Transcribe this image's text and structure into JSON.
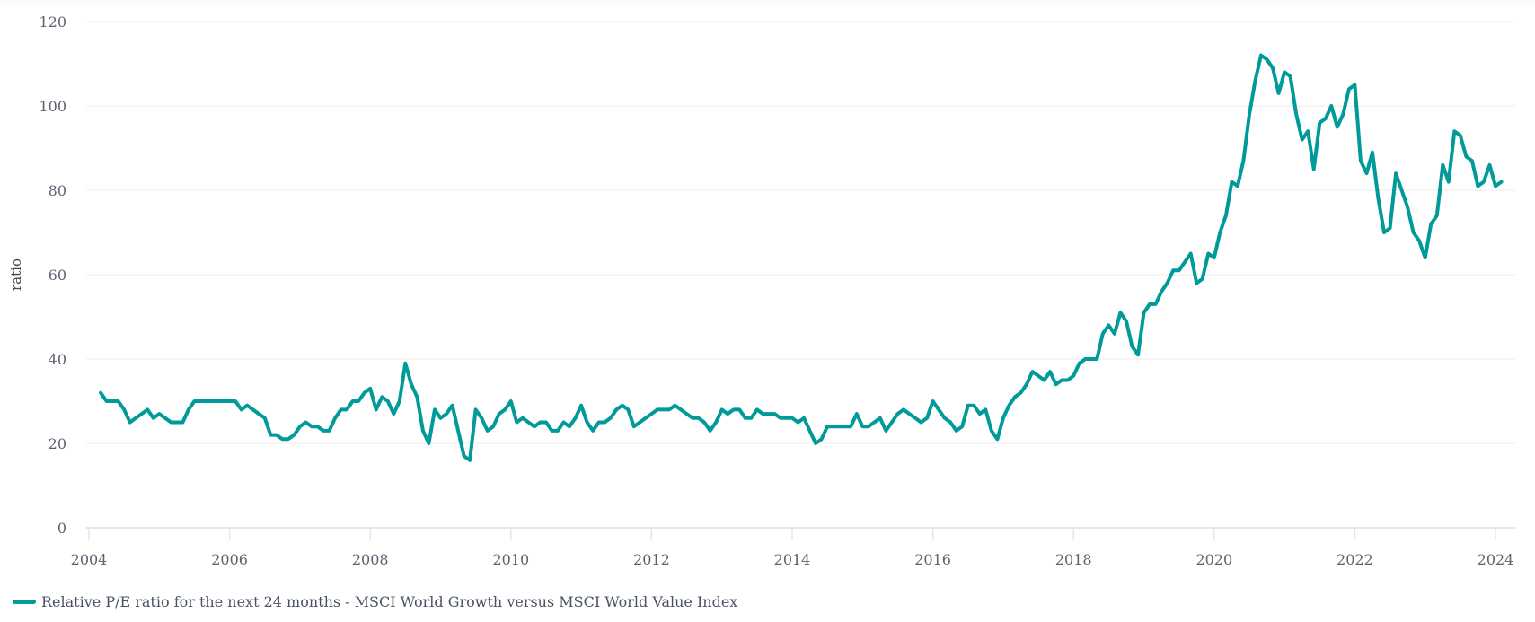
{
  "chart_data": {
    "type": "line",
    "title": "",
    "xlabel": "",
    "ylabel": "ratio",
    "ylim": [
      0,
      120
    ],
    "xlim": [
      "2004-01",
      "2024-03"
    ],
    "y_ticks": [
      "0",
      "20",
      "40",
      "60",
      "80",
      "100",
      "120"
    ],
    "x_ticks": [
      "2004",
      "2006",
      "2008",
      "2010",
      "2012",
      "2014",
      "2016",
      "2018",
      "2020",
      "2022",
      "2024"
    ],
    "grid": "horizontal",
    "legend_position": "bottom-left",
    "series": [
      {
        "name": "Relative P/E ratio for the next 24 months - MSCI World Growth versus MSCI World Value Index",
        "color": "#009a9b",
        "points": [
          [
            "2004-03",
            32
          ],
          [
            "2004-04",
            30
          ],
          [
            "2004-05",
            30
          ],
          [
            "2004-06",
            30
          ],
          [
            "2004-07",
            28
          ],
          [
            "2004-08",
            25
          ],
          [
            "2004-09",
            26
          ],
          [
            "2004-10",
            27
          ],
          [
            "2004-11",
            28
          ],
          [
            "2004-12",
            26
          ],
          [
            "2005-01",
            27
          ],
          [
            "2005-02",
            26
          ],
          [
            "2005-03",
            25
          ],
          [
            "2005-04",
            25
          ],
          [
            "2005-05",
            25
          ],
          [
            "2005-06",
            28
          ],
          [
            "2005-07",
            30
          ],
          [
            "2005-08",
            30
          ],
          [
            "2005-09",
            30
          ],
          [
            "2005-10",
            30
          ],
          [
            "2005-11",
            30
          ],
          [
            "2005-12",
            30
          ],
          [
            "2006-01",
            30
          ],
          [
            "2006-02",
            30
          ],
          [
            "2006-03",
            28
          ],
          [
            "2006-04",
            29
          ],
          [
            "2006-05",
            28
          ],
          [
            "2006-06",
            27
          ],
          [
            "2006-07",
            26
          ],
          [
            "2006-08",
            22
          ],
          [
            "2006-09",
            22
          ],
          [
            "2006-10",
            21
          ],
          [
            "2006-11",
            21
          ],
          [
            "2006-12",
            22
          ],
          [
            "2007-01",
            24
          ],
          [
            "2007-02",
            25
          ],
          [
            "2007-03",
            24
          ],
          [
            "2007-04",
            24
          ],
          [
            "2007-05",
            23
          ],
          [
            "2007-06",
            23
          ],
          [
            "2007-07",
            26
          ],
          [
            "2007-08",
            28
          ],
          [
            "2007-09",
            28
          ],
          [
            "2007-10",
            30
          ],
          [
            "2007-11",
            30
          ],
          [
            "2007-12",
            32
          ],
          [
            "2008-01",
            33
          ],
          [
            "2008-02",
            28
          ],
          [
            "2008-03",
            31
          ],
          [
            "2008-04",
            30
          ],
          [
            "2008-05",
            27
          ],
          [
            "2008-06",
            30
          ],
          [
            "2008-07",
            39
          ],
          [
            "2008-08",
            34
          ],
          [
            "2008-09",
            31
          ],
          [
            "2008-10",
            23
          ],
          [
            "2008-11",
            20
          ],
          [
            "2008-12",
            28
          ],
          [
            "2009-01",
            26
          ],
          [
            "2009-02",
            27
          ],
          [
            "2009-03",
            29
          ],
          [
            "2009-04",
            23
          ],
          [
            "2009-05",
            17
          ],
          [
            "2009-06",
            16
          ],
          [
            "2009-07",
            28
          ],
          [
            "2009-08",
            26
          ],
          [
            "2009-09",
            23
          ],
          [
            "2009-10",
            24
          ],
          [
            "2009-11",
            27
          ],
          [
            "2009-12",
            28
          ],
          [
            "2010-01",
            30
          ],
          [
            "2010-02",
            25
          ],
          [
            "2010-03",
            26
          ],
          [
            "2010-04",
            25
          ],
          [
            "2010-05",
            24
          ],
          [
            "2010-06",
            25
          ],
          [
            "2010-07",
            25
          ],
          [
            "2010-08",
            23
          ],
          [
            "2010-09",
            23
          ],
          [
            "2010-10",
            25
          ],
          [
            "2010-11",
            24
          ],
          [
            "2010-12",
            26
          ],
          [
            "2011-01",
            29
          ],
          [
            "2011-02",
            25
          ],
          [
            "2011-03",
            23
          ],
          [
            "2011-04",
            25
          ],
          [
            "2011-05",
            25
          ],
          [
            "2011-06",
            26
          ],
          [
            "2011-07",
            28
          ],
          [
            "2011-08",
            29
          ],
          [
            "2011-09",
            28
          ],
          [
            "2011-10",
            24
          ],
          [
            "2011-11",
            25
          ],
          [
            "2011-12",
            26
          ],
          [
            "2012-01",
            27
          ],
          [
            "2012-02",
            28
          ],
          [
            "2012-03",
            28
          ],
          [
            "2012-04",
            28
          ],
          [
            "2012-05",
            29
          ],
          [
            "2012-06",
            28
          ],
          [
            "2012-07",
            27
          ],
          [
            "2012-08",
            26
          ],
          [
            "2012-09",
            26
          ],
          [
            "2012-10",
            25
          ],
          [
            "2012-11",
            23
          ],
          [
            "2012-12",
            25
          ],
          [
            "2013-01",
            28
          ],
          [
            "2013-02",
            27
          ],
          [
            "2013-03",
            28
          ],
          [
            "2013-04",
            28
          ],
          [
            "2013-05",
            26
          ],
          [
            "2013-06",
            26
          ],
          [
            "2013-07",
            28
          ],
          [
            "2013-08",
            27
          ],
          [
            "2013-09",
            27
          ],
          [
            "2013-10",
            27
          ],
          [
            "2013-11",
            26
          ],
          [
            "2013-12",
            26
          ],
          [
            "2014-01",
            26
          ],
          [
            "2014-02",
            25
          ],
          [
            "2014-03",
            26
          ],
          [
            "2014-04",
            23
          ],
          [
            "2014-05",
            20
          ],
          [
            "2014-06",
            21
          ],
          [
            "2014-07",
            24
          ],
          [
            "2014-08",
            24
          ],
          [
            "2014-09",
            24
          ],
          [
            "2014-10",
            24
          ],
          [
            "2014-11",
            24
          ],
          [
            "2014-12",
            27
          ],
          [
            "2015-01",
            24
          ],
          [
            "2015-02",
            24
          ],
          [
            "2015-03",
            25
          ],
          [
            "2015-04",
            26
          ],
          [
            "2015-05",
            23
          ],
          [
            "2015-06",
            25
          ],
          [
            "2015-07",
            27
          ],
          [
            "2015-08",
            28
          ],
          [
            "2015-09",
            27
          ],
          [
            "2015-10",
            26
          ],
          [
            "2015-11",
            25
          ],
          [
            "2015-12",
            26
          ],
          [
            "2016-01",
            30
          ],
          [
            "2016-02",
            28
          ],
          [
            "2016-03",
            26
          ],
          [
            "2016-04",
            25
          ],
          [
            "2016-05",
            23
          ],
          [
            "2016-06",
            24
          ],
          [
            "2016-07",
            29
          ],
          [
            "2016-08",
            29
          ],
          [
            "2016-09",
            27
          ],
          [
            "2016-10",
            28
          ],
          [
            "2016-11",
            23
          ],
          [
            "2016-12",
            21
          ],
          [
            "2017-01",
            26
          ],
          [
            "2017-02",
            29
          ],
          [
            "2017-03",
            31
          ],
          [
            "2017-04",
            32
          ],
          [
            "2017-05",
            34
          ],
          [
            "2017-06",
            37
          ],
          [
            "2017-07",
            36
          ],
          [
            "2017-08",
            35
          ],
          [
            "2017-09",
            37
          ],
          [
            "2017-10",
            34
          ],
          [
            "2017-11",
            35
          ],
          [
            "2017-12",
            35
          ],
          [
            "2018-01",
            36
          ],
          [
            "2018-02",
            39
          ],
          [
            "2018-03",
            40
          ],
          [
            "2018-04",
            40
          ],
          [
            "2018-05",
            40
          ],
          [
            "2018-06",
            46
          ],
          [
            "2018-07",
            48
          ],
          [
            "2018-08",
            46
          ],
          [
            "2018-09",
            51
          ],
          [
            "2018-10",
            49
          ],
          [
            "2018-11",
            43
          ],
          [
            "2018-12",
            41
          ],
          [
            "2019-01",
            51
          ],
          [
            "2019-02",
            53
          ],
          [
            "2019-03",
            53
          ],
          [
            "2019-04",
            56
          ],
          [
            "2019-05",
            58
          ],
          [
            "2019-06",
            61
          ],
          [
            "2019-07",
            61
          ],
          [
            "2019-08",
            63
          ],
          [
            "2019-09",
            65
          ],
          [
            "2019-10",
            58
          ],
          [
            "2019-11",
            59
          ],
          [
            "2019-12",
            65
          ],
          [
            "2020-01",
            64
          ],
          [
            "2020-02",
            70
          ],
          [
            "2020-03",
            74
          ],
          [
            "2020-04",
            82
          ],
          [
            "2020-05",
            81
          ],
          [
            "2020-06",
            87
          ],
          [
            "2020-07",
            98
          ],
          [
            "2020-08",
            106
          ],
          [
            "2020-09",
            112
          ],
          [
            "2020-10",
            111
          ],
          [
            "2020-11",
            109
          ],
          [
            "2020-12",
            103
          ],
          [
            "2021-01",
            108
          ],
          [
            "2021-02",
            107
          ],
          [
            "2021-03",
            98
          ],
          [
            "2021-04",
            92
          ],
          [
            "2021-05",
            94
          ],
          [
            "2021-06",
            85
          ],
          [
            "2021-07",
            96
          ],
          [
            "2021-08",
            97
          ],
          [
            "2021-09",
            100
          ],
          [
            "2021-10",
            95
          ],
          [
            "2021-11",
            98
          ],
          [
            "2021-12",
            104
          ],
          [
            "2022-01",
            105
          ],
          [
            "2022-02",
            87
          ],
          [
            "2022-03",
            84
          ],
          [
            "2022-04",
            89
          ],
          [
            "2022-05",
            78
          ],
          [
            "2022-06",
            70
          ],
          [
            "2022-07",
            71
          ],
          [
            "2022-08",
            84
          ],
          [
            "2022-09",
            80
          ],
          [
            "2022-10",
            76
          ],
          [
            "2022-11",
            70
          ],
          [
            "2022-12",
            68
          ],
          [
            "2023-01",
            64
          ],
          [
            "2023-02",
            72
          ],
          [
            "2023-03",
            74
          ],
          [
            "2023-04",
            86
          ],
          [
            "2023-05",
            82
          ],
          [
            "2023-06",
            94
          ],
          [
            "2023-07",
            93
          ],
          [
            "2023-08",
            88
          ],
          [
            "2023-09",
            87
          ],
          [
            "2023-10",
            81
          ],
          [
            "2023-11",
            82
          ],
          [
            "2023-12",
            86
          ],
          [
            "2024-01",
            81
          ],
          [
            "2024-02",
            82
          ]
        ]
      }
    ]
  }
}
